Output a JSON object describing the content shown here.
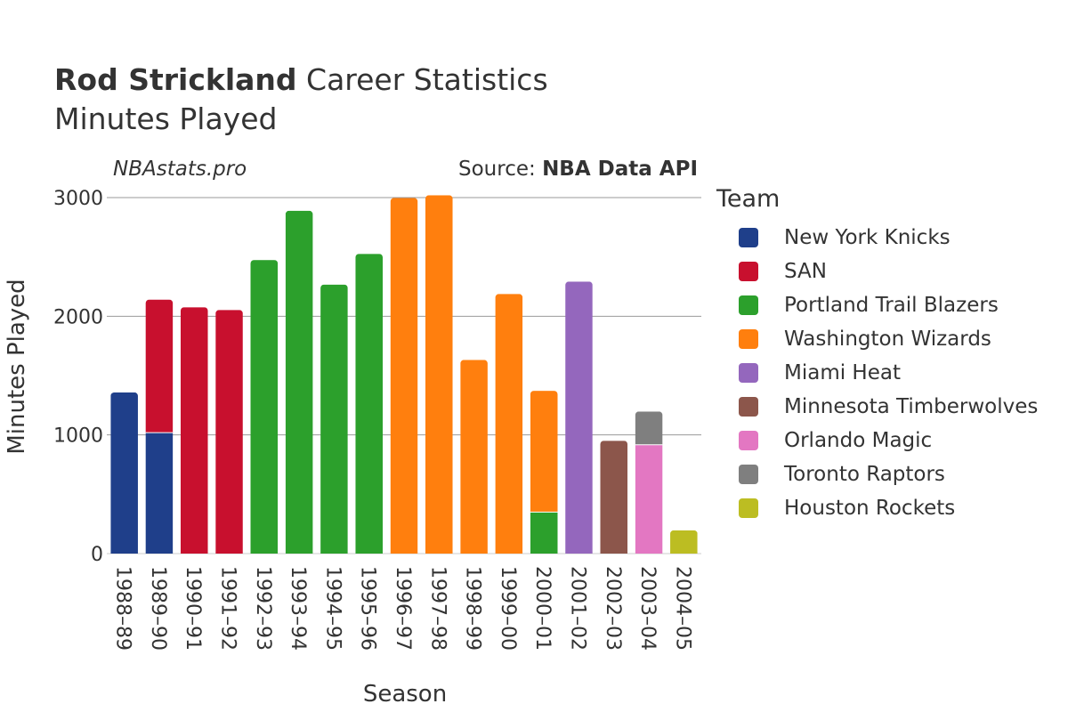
{
  "header": {
    "title_bold": "Rod Strickland",
    "title_rest": " Career Statistics",
    "subtitle": "Minutes Played",
    "watermark": "NBAstats.pro",
    "source_prefix": "Source: ",
    "source_name": "NBA Data API"
  },
  "chart_data": {
    "type": "bar",
    "stacked": true,
    "xlabel": "Season",
    "ylabel": "Minutes Played",
    "ylim": [
      0,
      3000
    ],
    "yticks": [
      0,
      1000,
      2000,
      3000
    ],
    "categories": [
      "1988–89",
      "1989–90",
      "1990–91",
      "1991–92",
      "1992–93",
      "1993–94",
      "1994–95",
      "1995–96",
      "1996–97",
      "1997–98",
      "1998–99",
      "1999–00",
      "2000–01",
      "2001–02",
      "2002–03",
      "2003–04",
      "2004–05"
    ],
    "series": [
      {
        "name": "New York Knicks",
        "color": "#1f3f8a",
        "values": [
          1358,
          1019,
          0,
          0,
          0,
          0,
          0,
          0,
          0,
          0,
          0,
          0,
          0,
          0,
          0,
          0,
          0
        ]
      },
      {
        "name": "SAN",
        "color": "#c8102e",
        "values": [
          0,
          1121,
          2076,
          2053,
          0,
          0,
          0,
          0,
          0,
          0,
          0,
          0,
          0,
          0,
          0,
          0,
          0
        ]
      },
      {
        "name": "Portland Trail Blazers",
        "color": "#2ca02c",
        "values": [
          0,
          0,
          0,
          0,
          2474,
          2889,
          2267,
          2526,
          0,
          0,
          0,
          0,
          350,
          0,
          0,
          0,
          0
        ]
      },
      {
        "name": "Washington Wizards",
        "color": "#ff7f0e",
        "values": [
          0,
          0,
          0,
          0,
          0,
          0,
          0,
          0,
          2997,
          3020,
          1632,
          2188,
          1022,
          0,
          0,
          0,
          0
        ]
      },
      {
        "name": "Miami Heat",
        "color": "#9467bd",
        "values": [
          0,
          0,
          0,
          0,
          0,
          0,
          0,
          0,
          0,
          0,
          0,
          0,
          0,
          2292,
          0,
          0,
          0
        ]
      },
      {
        "name": "Minnesota Timberwolves",
        "color": "#8c564b",
        "values": [
          0,
          0,
          0,
          0,
          0,
          0,
          0,
          0,
          0,
          0,
          0,
          0,
          0,
          0,
          951,
          0,
          0
        ]
      },
      {
        "name": "Orlando Magic",
        "color": "#e377c2",
        "values": [
          0,
          0,
          0,
          0,
          0,
          0,
          0,
          0,
          0,
          0,
          0,
          0,
          0,
          0,
          0,
          917,
          0
        ]
      },
      {
        "name": "Toronto Raptors",
        "color": "#7f7f7f",
        "values": [
          0,
          0,
          0,
          0,
          0,
          0,
          0,
          0,
          0,
          0,
          0,
          0,
          0,
          0,
          0,
          280,
          0
        ]
      },
      {
        "name": "Houston Rockets",
        "color": "#bcbd22",
        "values": [
          0,
          0,
          0,
          0,
          0,
          0,
          0,
          0,
          0,
          0,
          0,
          0,
          0,
          0,
          0,
          0,
          196
        ]
      }
    ],
    "legend_title": "Team",
    "legend_position": "right"
  }
}
